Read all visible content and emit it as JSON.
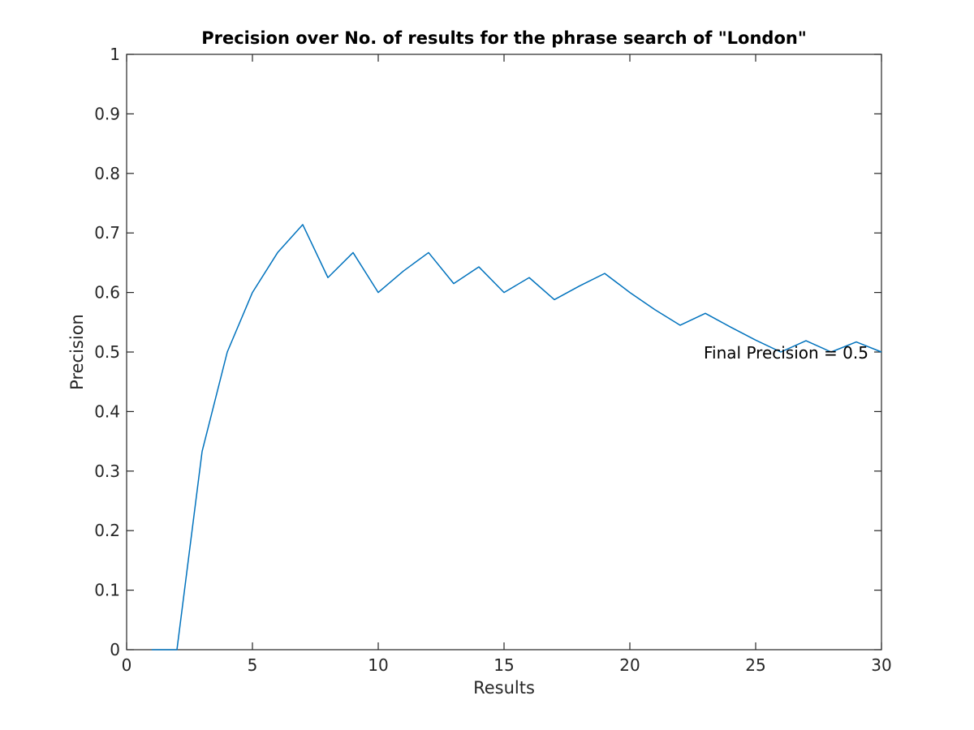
{
  "chart_data": {
    "type": "line",
    "title": "Precision over No. of results for the phrase search of \"London\"",
    "xlabel": "Results",
    "ylabel": "Precision",
    "xlim": [
      0,
      30
    ],
    "ylim": [
      0,
      1
    ],
    "xticks": [
      0,
      5,
      10,
      15,
      20,
      25,
      30
    ],
    "yticks": [
      0,
      0.1,
      0.2,
      0.3,
      0.4,
      0.5,
      0.6,
      0.7,
      0.8,
      0.9,
      1
    ],
    "grid": false,
    "box": true,
    "series": [
      {
        "color": "#0072BD",
        "x": [
          1,
          2,
          3,
          4,
          5,
          6,
          7,
          8,
          9,
          10,
          11,
          12,
          13,
          14,
          15,
          16,
          17,
          18,
          19,
          20,
          21,
          22,
          23,
          24,
          25,
          26,
          27,
          28,
          29,
          30
        ],
        "y": [
          0,
          0,
          0.333,
          0.5,
          0.6,
          0.667,
          0.714,
          0.625,
          0.667,
          0.6,
          0.636,
          0.667,
          0.615,
          0.643,
          0.6,
          0.625,
          0.588,
          0.611,
          0.632,
          0.6,
          0.571,
          0.545,
          0.565,
          0.542,
          0.52,
          0.5,
          0.519,
          0.5,
          0.517,
          0.5
        ]
      }
    ],
    "annotations": [
      {
        "text": "Final Precision = 0.5",
        "x": 23,
        "y": 0.5
      }
    ]
  }
}
